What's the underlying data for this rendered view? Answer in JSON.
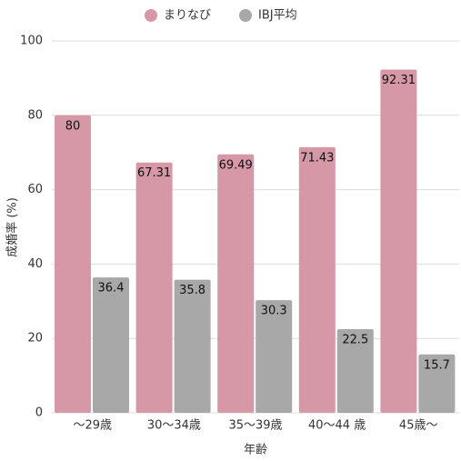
{
  "chart_data": {
    "type": "bar",
    "categories": [
      "〜29歳",
      "30〜34歳",
      "35〜39歳",
      "40〜44 歳",
      "45歳〜"
    ],
    "series": [
      {
        "name": "まりなび",
        "color": "#d698a7",
        "values": [
          80,
          67.31,
          69.49,
          71.43,
          92.31
        ]
      },
      {
        "name": "IBJ平均",
        "color": "#a8a8a8",
        "values": [
          36.4,
          35.8,
          30.3,
          22.5,
          15.7
        ]
      }
    ],
    "ylim": [
      0,
      100
    ],
    "yticks": [
      0,
      20,
      40,
      60,
      80,
      100
    ],
    "grid": true,
    "xlabel": "年齢",
    "ylabel": "成婚率 (%)",
    "legend": "top"
  }
}
